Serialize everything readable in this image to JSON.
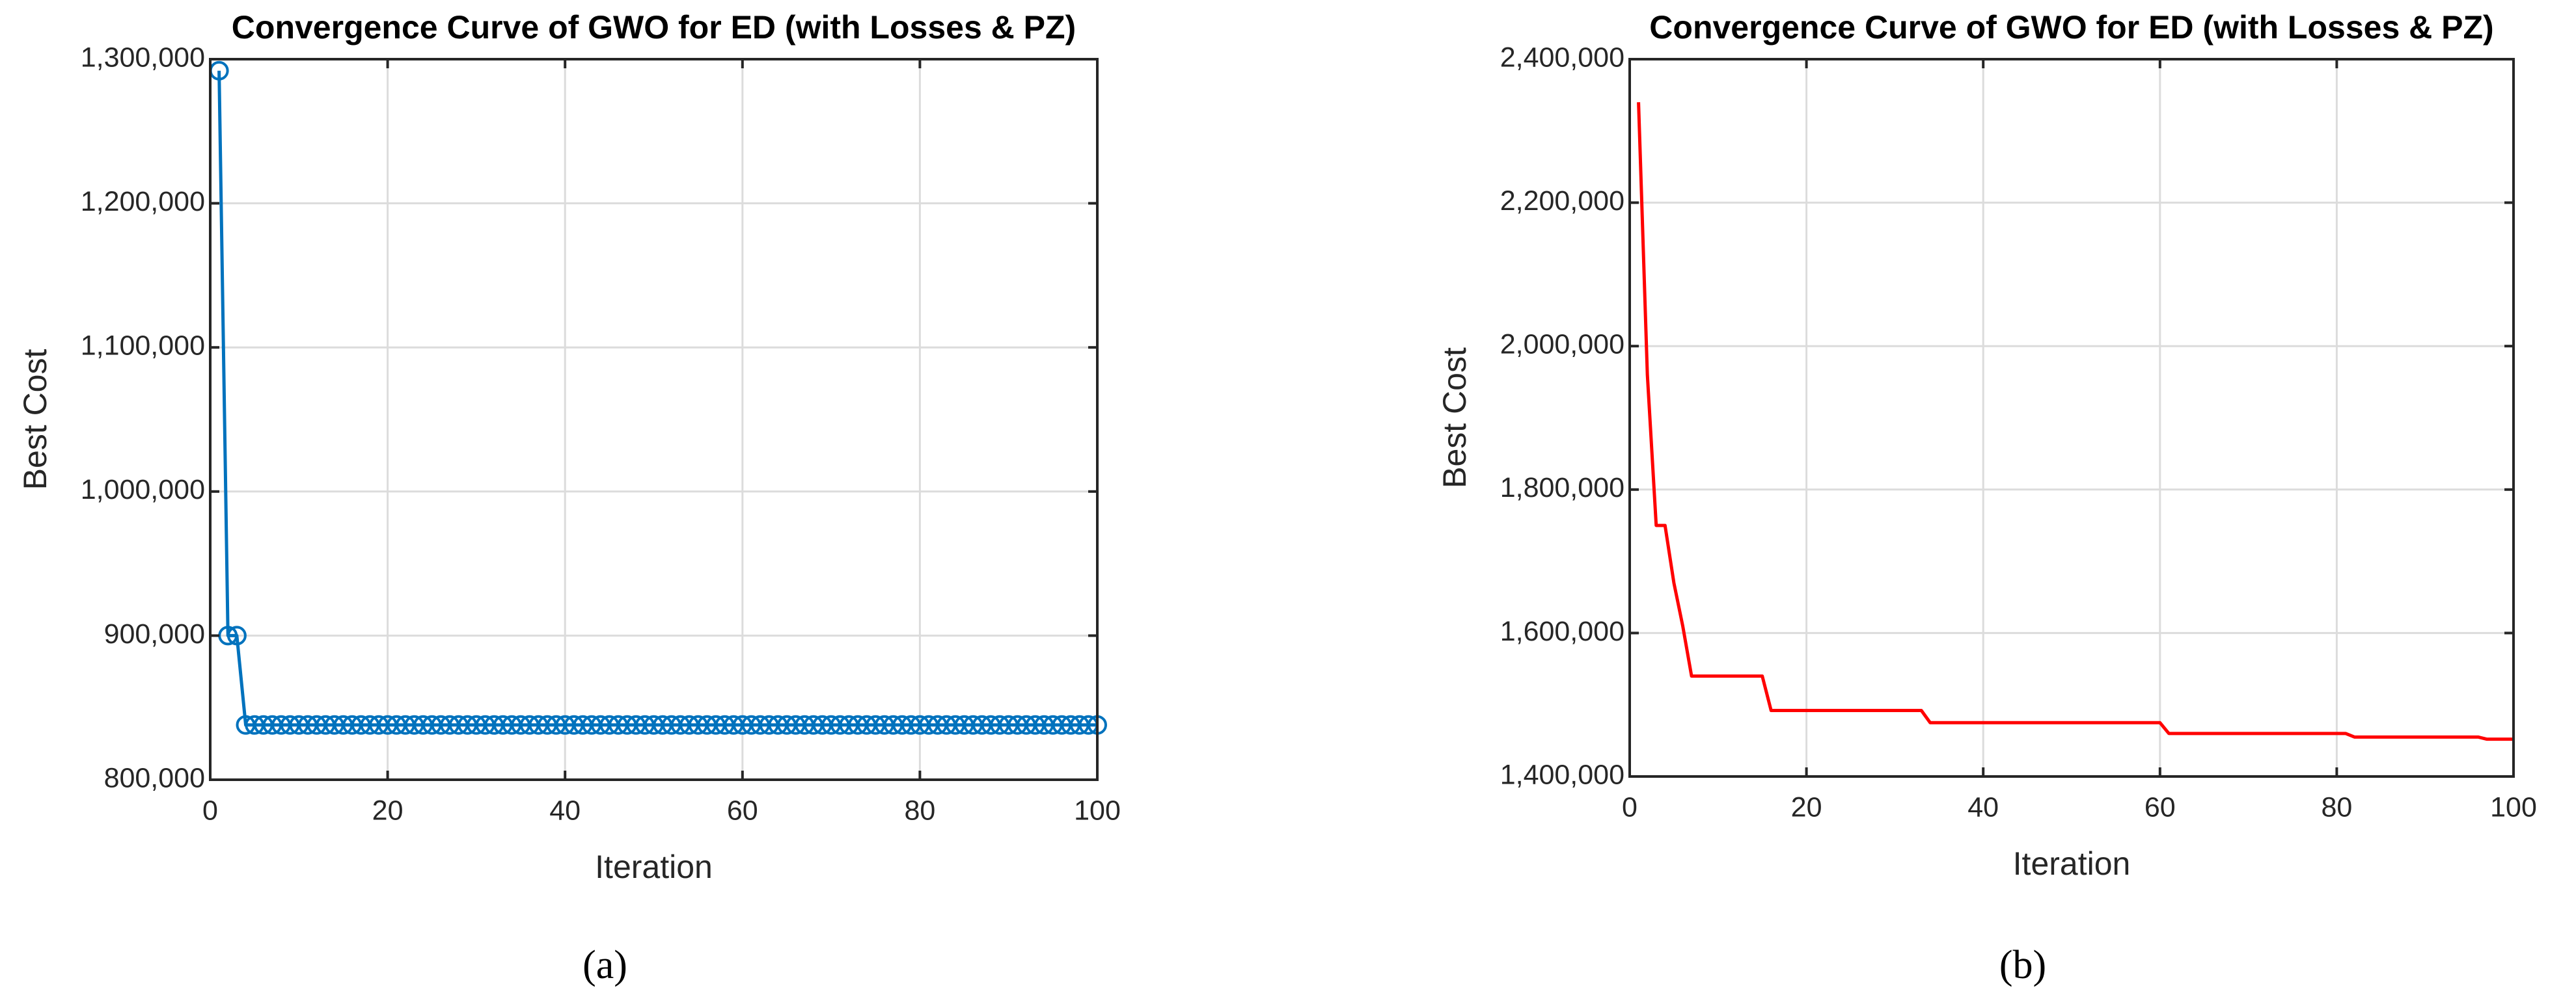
{
  "chart_data": [
    {
      "type": "line",
      "title": "Convergence Curve of GWO for ED (with Losses & PZ)",
      "xlabel": "Iteration",
      "ylabel": "Best Cost",
      "caption": "(a)",
      "color": "#0072bd",
      "marker": "circle",
      "grid": true,
      "xlim": [
        0,
        100
      ],
      "xticks": [
        0,
        20,
        40,
        60,
        80,
        100
      ],
      "ylim": [
        800000,
        1300000
      ],
      "yticks": [
        {
          "value": 800000,
          "label": "800,000"
        },
        {
          "value": 900000,
          "label": "900,000"
        },
        {
          "value": 1000000,
          "label": "1,000,000"
        },
        {
          "value": 1100000,
          "label": "1,100,000"
        },
        {
          "value": 1200000,
          "label": "1,200,000"
        },
        {
          "value": 1300000,
          "label": "1,300,000"
        }
      ],
      "x": [
        1,
        2,
        3,
        4,
        5,
        6,
        7,
        8,
        9,
        10,
        11,
        12,
        13,
        14,
        15,
        16,
        17,
        18,
        19,
        20,
        21,
        22,
        23,
        24,
        25,
        26,
        27,
        28,
        29,
        30,
        31,
        32,
        33,
        34,
        35,
        36,
        37,
        38,
        39,
        40,
        41,
        42,
        43,
        44,
        45,
        46,
        47,
        48,
        49,
        50,
        51,
        52,
        53,
        54,
        55,
        56,
        57,
        58,
        59,
        60,
        61,
        62,
        63,
        64,
        65,
        66,
        67,
        68,
        69,
        70,
        71,
        72,
        73,
        74,
        75,
        76,
        77,
        78,
        79,
        80,
        81,
        82,
        83,
        84,
        85,
        86,
        87,
        88,
        89,
        90,
        91,
        92,
        93,
        94,
        95,
        96,
        97,
        98,
        99,
        100
      ],
      "values": [
        1292000,
        900000,
        900000,
        838000,
        838000,
        838000,
        838000,
        838000,
        838000,
        838000,
        838000,
        838000,
        838000,
        838000,
        838000,
        838000,
        838000,
        838000,
        838000,
        838000,
        838000,
        838000,
        838000,
        838000,
        838000,
        838000,
        838000,
        838000,
        838000,
        838000,
        838000,
        838000,
        838000,
        838000,
        838000,
        838000,
        838000,
        838000,
        838000,
        838000,
        838000,
        838000,
        838000,
        838000,
        838000,
        838000,
        838000,
        838000,
        838000,
        838000,
        838000,
        838000,
        838000,
        838000,
        838000,
        838000,
        838000,
        838000,
        838000,
        838000,
        838000,
        838000,
        838000,
        838000,
        838000,
        838000,
        838000,
        838000,
        838000,
        838000,
        838000,
        838000,
        838000,
        838000,
        838000,
        838000,
        838000,
        838000,
        838000,
        838000,
        838000,
        838000,
        838000,
        838000,
        838000,
        838000,
        838000,
        838000,
        838000,
        838000,
        838000,
        838000,
        838000,
        838000,
        838000,
        838000,
        838000,
        838000,
        838000,
        838000
      ]
    },
    {
      "type": "line",
      "title": "Convergence Curve of GWO for ED (with Losses & PZ)",
      "xlabel": "Iteration",
      "ylabel": "Best Cost",
      "caption": "(b)",
      "color": "#ff0000",
      "grid": true,
      "xlim": [
        0,
        100
      ],
      "xticks": [
        0,
        20,
        40,
        60,
        80,
        100
      ],
      "ylim": [
        1400000,
        2400000
      ],
      "yticks": [
        {
          "value": 1400000,
          "label": "1,400,000"
        },
        {
          "value": 1600000,
          "label": "1,600,000"
        },
        {
          "value": 1800000,
          "label": "1,800,000"
        },
        {
          "value": 2000000,
          "label": "2,000,000"
        },
        {
          "value": 2200000,
          "label": "2,200,000"
        },
        {
          "value": 2400000,
          "label": "2,400,000"
        }
      ],
      "x": [
        1,
        2,
        3,
        4,
        5,
        6,
        7,
        8,
        9,
        10,
        11,
        12,
        13,
        14,
        15,
        16,
        17,
        18,
        19,
        20,
        21,
        22,
        23,
        24,
        25,
        26,
        27,
        28,
        29,
        30,
        31,
        32,
        33,
        34,
        35,
        36,
        37,
        38,
        39,
        40,
        41,
        42,
        43,
        44,
        45,
        46,
        47,
        48,
        49,
        50,
        51,
        52,
        53,
        54,
        55,
        56,
        57,
        58,
        59,
        60,
        61,
        62,
        63,
        64,
        65,
        66,
        67,
        68,
        69,
        70,
        71,
        72,
        73,
        74,
        75,
        76,
        77,
        78,
        79,
        80,
        81,
        82,
        83,
        84,
        85,
        86,
        87,
        88,
        89,
        90,
        91,
        92,
        93,
        94,
        95,
        96,
        97,
        98,
        99,
        100
      ],
      "values": [
        2340000,
        1960000,
        1750000,
        1750000,
        1670000,
        1610000,
        1540000,
        1540000,
        1540000,
        1540000,
        1540000,
        1540000,
        1540000,
        1540000,
        1540000,
        1492000,
        1492000,
        1492000,
        1492000,
        1492000,
        1492000,
        1492000,
        1492000,
        1492000,
        1492000,
        1492000,
        1492000,
        1492000,
        1492000,
        1492000,
        1492000,
        1492000,
        1492000,
        1475000,
        1475000,
        1475000,
        1475000,
        1475000,
        1475000,
        1475000,
        1475000,
        1475000,
        1475000,
        1475000,
        1475000,
        1475000,
        1475000,
        1475000,
        1475000,
        1475000,
        1475000,
        1475000,
        1475000,
        1475000,
        1475000,
        1475000,
        1475000,
        1475000,
        1475000,
        1475000,
        1460000,
        1460000,
        1460000,
        1460000,
        1460000,
        1460000,
        1460000,
        1460000,
        1460000,
        1460000,
        1460000,
        1460000,
        1460000,
        1460000,
        1460000,
        1460000,
        1460000,
        1460000,
        1460000,
        1460000,
        1460000,
        1455000,
        1455000,
        1455000,
        1455000,
        1455000,
        1455000,
        1455000,
        1455000,
        1455000,
        1455000,
        1455000,
        1455000,
        1455000,
        1455000,
        1455000,
        1452000,
        1452000,
        1452000,
        1452000
      ]
    }
  ]
}
